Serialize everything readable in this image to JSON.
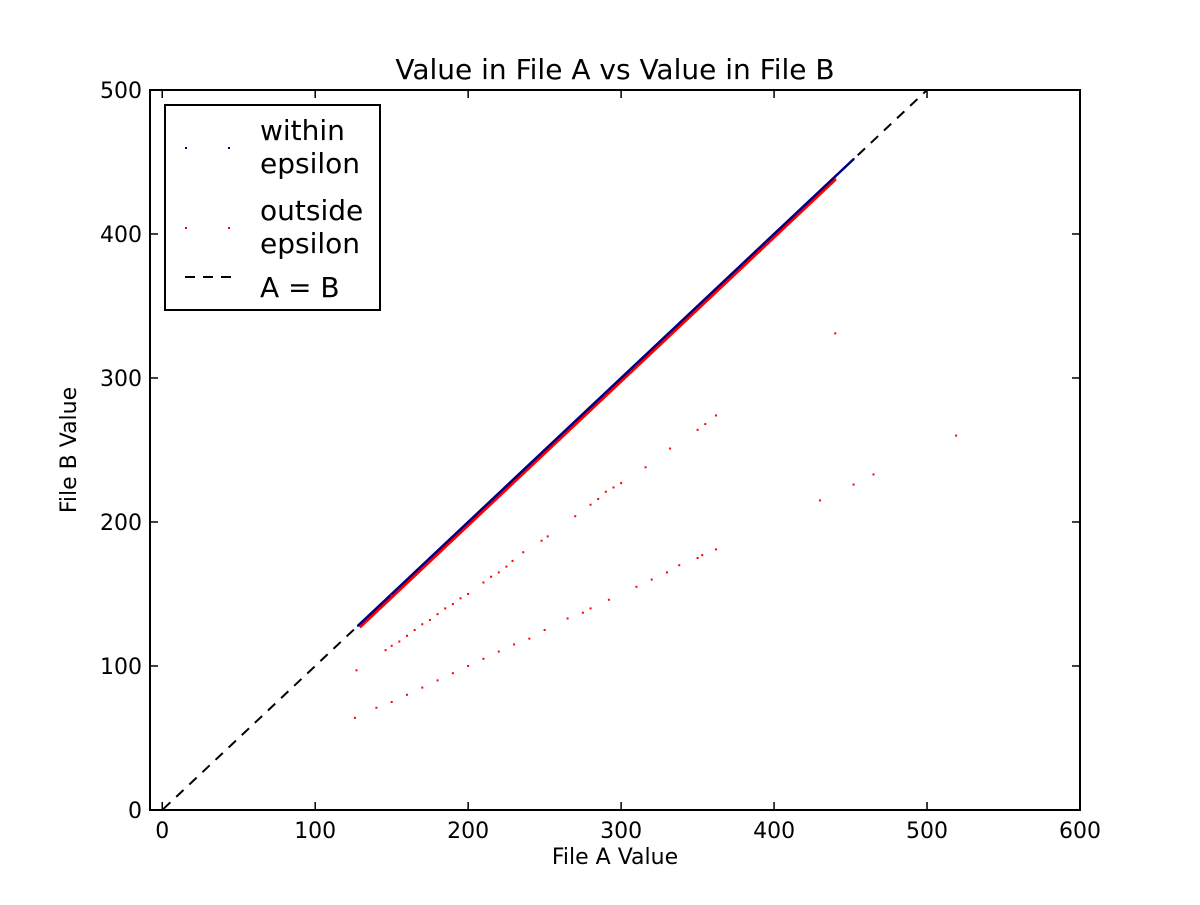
{
  "chart_data": {
    "type": "scatter",
    "title": "Value in File A vs Value in File B",
    "xlabel": "File A Value",
    "ylabel": "File B Value",
    "xlim": [
      -8,
      600
    ],
    "ylim": [
      0,
      500
    ],
    "x_ticks": [
      0,
      100,
      200,
      300,
      400,
      500,
      600
    ],
    "y_ticks": [
      0,
      100,
      200,
      300,
      400,
      500
    ],
    "legend_position": "top-left",
    "grid": false,
    "series": [
      {
        "name": "within epsilon",
        "marker": "point",
        "color": "#000080",
        "points": [
          [
            128,
            128
          ],
          [
            150,
            150
          ],
          [
            175,
            175
          ],
          [
            200,
            200
          ],
          [
            225,
            225
          ],
          [
            250,
            250
          ],
          [
            275,
            275
          ],
          [
            300,
            300
          ],
          [
            325,
            325
          ],
          [
            350,
            350
          ],
          [
            375,
            375
          ],
          [
            400,
            400
          ],
          [
            425,
            425
          ],
          [
            440,
            440
          ],
          [
            446,
            446
          ],
          [
            452,
            452
          ]
        ]
      },
      {
        "name": "outside epsilon",
        "marker": "point",
        "color": "#ff0000",
        "points": [
          [
            130,
            128
          ],
          [
            150,
            149
          ],
          [
            170,
            168
          ],
          [
            190,
            188
          ],
          [
            210,
            208
          ],
          [
            230,
            228
          ],
          [
            250,
            248
          ],
          [
            270,
            268
          ],
          [
            290,
            288
          ],
          [
            310,
            308
          ],
          [
            330,
            328
          ],
          [
            350,
            348
          ],
          [
            370,
            368
          ],
          [
            390,
            388
          ],
          [
            410,
            408
          ],
          [
            430,
            428
          ],
          [
            440,
            438
          ],
          [
            146,
            111
          ],
          [
            150,
            114
          ],
          [
            155,
            117
          ],
          [
            160,
            121
          ],
          [
            165,
            125
          ],
          [
            170,
            129
          ],
          [
            175,
            132
          ],
          [
            180,
            136
          ],
          [
            185,
            140
          ],
          [
            190,
            143
          ],
          [
            195,
            147
          ],
          [
            200,
            150
          ],
          [
            210,
            158
          ],
          [
            215,
            162
          ],
          [
            220,
            165
          ],
          [
            225,
            169
          ],
          [
            229,
            173
          ],
          [
            236,
            179
          ],
          [
            248,
            187
          ],
          [
            252,
            190
          ],
          [
            270,
            204
          ],
          [
            280,
            212
          ],
          [
            285,
            216
          ],
          [
            290,
            221
          ],
          [
            295,
            224
          ],
          [
            300,
            227
          ],
          [
            316,
            238
          ],
          [
            332,
            251
          ],
          [
            350,
            264
          ],
          [
            355,
            268
          ],
          [
            362,
            274
          ],
          [
            127,
            97
          ],
          [
            126,
            64
          ],
          [
            140,
            71
          ],
          [
            150,
            75
          ],
          [
            160,
            80
          ],
          [
            170,
            85
          ],
          [
            180,
            90
          ],
          [
            190,
            95
          ],
          [
            200,
            100
          ],
          [
            210,
            105
          ],
          [
            220,
            110
          ],
          [
            230,
            115
          ],
          [
            240,
            119
          ],
          [
            250,
            125
          ],
          [
            265,
            133
          ],
          [
            275,
            137
          ],
          [
            280,
            140
          ],
          [
            292,
            146
          ],
          [
            310,
            155
          ],
          [
            320,
            160
          ],
          [
            330,
            165
          ],
          [
            338,
            170
          ],
          [
            350,
            175
          ],
          [
            353,
            177
          ],
          [
            362,
            181
          ],
          [
            440,
            331
          ],
          [
            430,
            215
          ],
          [
            452,
            226
          ],
          [
            465,
            233
          ],
          [
            519,
            260
          ]
        ]
      }
    ],
    "reference_line": {
      "name": "A = B",
      "style": "dashed",
      "color": "#000000",
      "from": [
        -8,
        -8
      ],
      "to": [
        600,
        600
      ]
    },
    "legend": [
      {
        "label_lines": [
          "within",
          "epsilon"
        ],
        "color": "#000080",
        "kind": "point"
      },
      {
        "label_lines": [
          "outside",
          "epsilon"
        ],
        "color": "#ff0000",
        "kind": "point"
      },
      {
        "label_lines": [
          "A = B"
        ],
        "color": "#000000",
        "kind": "dashed-line"
      }
    ]
  }
}
